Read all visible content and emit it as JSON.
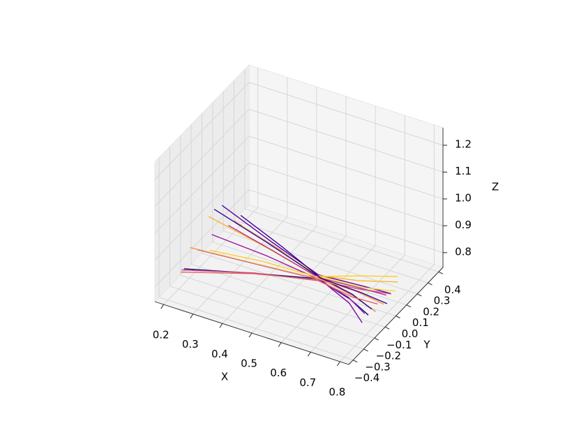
{
  "chart_data": {
    "type": "line3d",
    "xlabel": "X",
    "ylabel": "Y",
    "zlabel": "Z",
    "xlim": [
      0.17,
      0.83
    ],
    "ylim": [
      -0.44,
      0.44
    ],
    "zlim": [
      0.745,
      1.265
    ],
    "xticks": [
      0.2,
      0.3,
      0.4,
      0.5,
      0.6,
      0.7,
      0.8
    ],
    "yticks": [
      {
        "value": -0.4,
        "label": "−0.4"
      },
      {
        "value": -0.3,
        "label": "−0.3"
      },
      {
        "value": -0.2,
        "label": "−0.2"
      },
      {
        "value": -0.1,
        "label": "−0.1"
      },
      {
        "value": 0,
        "label": "0.0"
      },
      0.1,
      0.2,
      0.3,
      0.4
    ],
    "zticks": [
      0.8,
      0.9,
      {
        "value": 1,
        "label": "1.0"
      },
      1.1,
      1.2
    ],
    "grid": true,
    "series": [
      {
        "color": "#0d0887",
        "x": [
          0.2,
          0.4,
          0.57,
          0.7,
          0.78
        ],
        "y": [
          -0.25,
          -0.12,
          -0.02,
          -0.07,
          -0.12
        ],
        "z": [
          0.8,
          0.8,
          0.8,
          0.79,
          0.78
        ]
      },
      {
        "color": "#5c01a6",
        "x": [
          0.22,
          0.4,
          0.57,
          0.7,
          0.79
        ],
        "y": [
          0.05,
          0.02,
          -0.01,
          0.03,
          0.06
        ],
        "z": [
          0.92,
          0.86,
          0.81,
          0.8,
          0.79
        ]
      },
      {
        "color": "#9c179e",
        "x": [
          0.24,
          0.41,
          0.57,
          0.69,
          0.76
        ],
        "y": [
          -0.1,
          -0.05,
          -0.02,
          -0.06,
          -0.1
        ],
        "z": [
          0.88,
          0.84,
          0.8,
          0.79,
          0.77
        ]
      },
      {
        "color": "#cc4778",
        "x": [
          0.21,
          0.4,
          0.58,
          0.7,
          0.8
        ],
        "y": [
          -0.3,
          -0.14,
          -0.03,
          0.0,
          0.04
        ],
        "z": [
          0.82,
          0.81,
          0.8,
          0.8,
          0.8
        ]
      },
      {
        "color": "#ed7953",
        "x": [
          0.25,
          0.42,
          0.57,
          0.7,
          0.79
        ],
        "y": [
          0.08,
          0.04,
          -0.01,
          -0.04,
          -0.08
        ],
        "z": [
          0.86,
          0.83,
          0.8,
          0.79,
          0.78
        ]
      },
      {
        "color": "#fdb42f",
        "x": [
          0.2,
          0.39,
          0.56,
          0.69,
          0.8
        ],
        "y": [
          -0.02,
          -0.01,
          -0.02,
          0.04,
          0.1
        ],
        "z": [
          0.9,
          0.85,
          0.81,
          0.81,
          0.82
        ]
      },
      {
        "color": "#f5d82e",
        "x": [
          0.27,
          0.42,
          0.57,
          0.71,
          0.81
        ],
        "y": [
          0.1,
          0.05,
          0.0,
          0.02,
          0.05
        ],
        "z": [
          0.84,
          0.82,
          0.8,
          0.8,
          0.81
        ]
      },
      {
        "color": "#2a0593",
        "x": [
          0.23,
          0.4,
          0.57,
          0.7,
          0.78
        ],
        "y": [
          -0.05,
          -0.03,
          -0.02,
          -0.05,
          -0.09
        ],
        "z": [
          0.95,
          0.88,
          0.81,
          0.8,
          0.79
        ]
      },
      {
        "color": "#7e03a8",
        "x": [
          0.22,
          0.41,
          0.58,
          0.7,
          0.77
        ],
        "y": [
          -0.18,
          -0.09,
          -0.02,
          -0.08,
          -0.15
        ],
        "z": [
          0.85,
          0.82,
          0.8,
          0.78,
          0.76
        ]
      },
      {
        "color": "#b52f8c",
        "x": [
          0.26,
          0.41,
          0.57,
          0.7,
          0.79
        ],
        "y": [
          0.0,
          0.0,
          -0.01,
          0.01,
          0.02
        ],
        "z": [
          0.88,
          0.84,
          0.8,
          0.8,
          0.8
        ]
      },
      {
        "color": "#f89540",
        "x": [
          0.21,
          0.4,
          0.57,
          0.7,
          0.8
        ],
        "y": [
          -0.22,
          -0.11,
          -0.02,
          -0.02,
          -0.03
        ],
        "z": [
          0.87,
          0.83,
          0.8,
          0.8,
          0.79
        ]
      },
      {
        "color": "#fcce25",
        "x": [
          0.24,
          0.4,
          0.56,
          0.69,
          0.8
        ],
        "y": [
          -0.12,
          -0.06,
          -0.01,
          0.06,
          0.1
        ],
        "z": [
          0.83,
          0.82,
          0.8,
          0.82,
          0.84
        ]
      },
      {
        "color": "#3b049a",
        "x": [
          0.28,
          0.43,
          0.58,
          0.71,
          0.8
        ],
        "y": [
          0.06,
          0.03,
          -0.01,
          0.0,
          0.0
        ],
        "z": [
          0.9,
          0.85,
          0.8,
          0.79,
          0.78
        ]
      },
      {
        "color": "#e16462",
        "x": [
          0.2,
          0.39,
          0.57,
          0.7,
          0.79
        ],
        "y": [
          -0.28,
          -0.13,
          -0.03,
          -0.05,
          -0.06
        ],
        "z": [
          0.8,
          0.8,
          0.8,
          0.79,
          0.8
        ]
      }
    ]
  }
}
